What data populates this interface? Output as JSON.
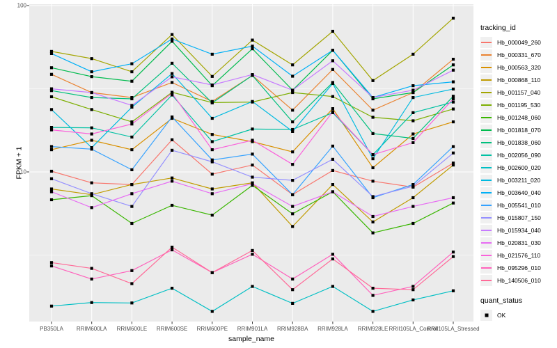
{
  "figure": {
    "background": "#FFFFFF",
    "panel_bg": "#EBEBEB",
    "grid_color": "#FFFFFF",
    "axis_text_color": "#4D4D4D",
    "tick_color": "#333333"
  },
  "chart_data": {
    "type": "line",
    "xlabel": "sample_name",
    "ylabel": "FPKM + 1",
    "y_scale": "log10",
    "y_major_ticks": [
      10,
      100
    ],
    "y_minor_gridlines": [
      3.162,
      31.62
    ],
    "ylim": [
      1.26,
      103
    ],
    "grid": true,
    "legend_position": "right",
    "point_shape": "square",
    "point_color": "#000000",
    "categories": [
      "PB350LA",
      "RRIM600LA",
      "RRIM600LE",
      "RRIM600SE",
      "RRIM600PE",
      "RRIM901LA",
      "RRIM928BA",
      "RRIM928LA",
      "RRIM928LE",
      "RRII105LA_Control",
      "RRII105LA_Stressed"
    ],
    "series": [
      {
        "name": "Hb_000049_260",
        "color": "#F8766D",
        "values": [
          10.1,
          8.6,
          8.4,
          15.6,
          9.7,
          11.0,
          7.3,
          10.2,
          8.8,
          8.1,
          11.3
        ]
      },
      {
        "name": "Hb_000331_670",
        "color": "#EA8331",
        "values": [
          38.6,
          30.0,
          28.0,
          34.5,
          26.5,
          38.0,
          23.5,
          41.3,
          23.5,
          30.0,
          47.6
        ]
      },
      {
        "name": "Hb_000563_320",
        "color": "#D89000",
        "values": [
          13.6,
          15.5,
          13.6,
          21.0,
          16.8,
          15.2,
          13.2,
          24.0,
          10.6,
          16.9,
          20.0
        ]
      },
      {
        "name": "Hb_000868_110",
        "color": "#C09B00",
        "values": [
          7.9,
          7.3,
          8.4,
          9.2,
          7.9,
          8.6,
          4.7,
          8.4,
          5.0,
          7.0,
          11.0
        ]
      },
      {
        "name": "Hb_001157_040",
        "color": "#A3A500",
        "values": [
          53,
          48,
          40,
          67,
          37.5,
          62,
          44,
          70,
          35.4,
          51,
          84
        ]
      },
      {
        "name": "Hb_001195_530",
        "color": "#7CAE00",
        "values": [
          28.3,
          23.7,
          20.0,
          30.1,
          26.1,
          26.3,
          30.0,
          28.4,
          21.3,
          20.3,
          23.9
        ]
      },
      {
        "name": "Hb_001248_060",
        "color": "#39B600",
        "values": [
          6.8,
          7.2,
          4.9,
          6.3,
          5.5,
          8.3,
          5.6,
          7.6,
          4.3,
          4.9,
          6.5
        ]
      },
      {
        "name": "Hb_001818_070",
        "color": "#00BB4E",
        "values": [
          42.3,
          37.4,
          35.1,
          61,
          33,
          55,
          31,
          53.8,
          27.5,
          30,
          44
        ]
      },
      {
        "name": "Hb_001838_060",
        "color": "#00BF7D",
        "values": [
          30.8,
          28.0,
          27.5,
          45.0,
          26.0,
          38.0,
          20.0,
          34.5,
          17.0,
          15.9,
          28.5
        ]
      },
      {
        "name": "Hb_002056_090",
        "color": "#00C1A3",
        "values": [
          18.5,
          18.4,
          16.2,
          29.0,
          15.2,
          18.1,
          18.0,
          22.7,
          12.7,
          22.7,
          26.3
        ]
      },
      {
        "name": "Hb_002600_020",
        "color": "#00BFC4",
        "values": [
          1.56,
          1.64,
          1.63,
          2.0,
          1.45,
          2.05,
          1.62,
          2.05,
          1.45,
          1.7,
          1.93
        ]
      },
      {
        "name": "Hb_003211_020",
        "color": "#00BAE0",
        "values": [
          23.7,
          14.0,
          24.5,
          39.0,
          21.0,
          26.5,
          17.5,
          34.0,
          12.0,
          28.0,
          31.5
        ]
      },
      {
        "name": "Hb_003640_040",
        "color": "#00B0F6",
        "values": [
          51.5,
          40.0,
          44.7,
          63.0,
          51.0,
          57.0,
          37.6,
          53.8,
          28.0,
          33.0,
          34.8
        ]
      },
      {
        "name": "Hb_005541_010",
        "color": "#35A2FF",
        "values": [
          14.2,
          13.7,
          10.3,
          21.4,
          11.8,
          12.8,
          7.3,
          14.3,
          7.0,
          8.4,
          14.2
        ]
      },
      {
        "name": "Hb_015807_150",
        "color": "#9590FF",
        "values": [
          9.1,
          7.4,
          6.2,
          13.5,
          11.5,
          9.3,
          8.9,
          11.9,
          7.1,
          8.2,
          13.0
        ]
      },
      {
        "name": "Hb_015934_040",
        "color": "#C77CFF",
        "values": [
          31.6,
          30.0,
          25.1,
          37.3,
          33.3,
          38.5,
          31.0,
          46.6,
          28.0,
          31.0,
          40.9
        ]
      },
      {
        "name": "Hb_020831_030",
        "color": "#E76BF3",
        "values": [
          7.6,
          6.1,
          7.4,
          8.8,
          7.4,
          8.5,
          6.2,
          7.6,
          5.4,
          6.2,
          7.0
        ]
      },
      {
        "name": "Hb_021576_110",
        "color": "#FA62DB",
        "values": [
          17.9,
          16.9,
          19.4,
          29.7,
          13.6,
          15.5,
          11.1,
          23.0,
          12.7,
          15.0,
          27.5
        ]
      },
      {
        "name": "Hb_095296_010",
        "color": "#FF62BC",
        "values": [
          2.72,
          2.27,
          2.55,
          3.4,
          2.48,
          3.2,
          2.27,
          3.2,
          1.81,
          2.05,
          3.3
        ]
      },
      {
        "name": "Hb_140506_010",
        "color": "#FF6A98",
        "values": [
          2.85,
          2.63,
          2.13,
          3.53,
          2.48,
          3.37,
          1.96,
          3.0,
          2.0,
          1.96,
          3.1
        ]
      }
    ],
    "legend": {
      "color_title": "tracking_id",
      "shape_title": "quant_status",
      "shape_entries": [
        {
          "label": "OK",
          "shape": "square",
          "color": "#000000"
        }
      ]
    }
  }
}
